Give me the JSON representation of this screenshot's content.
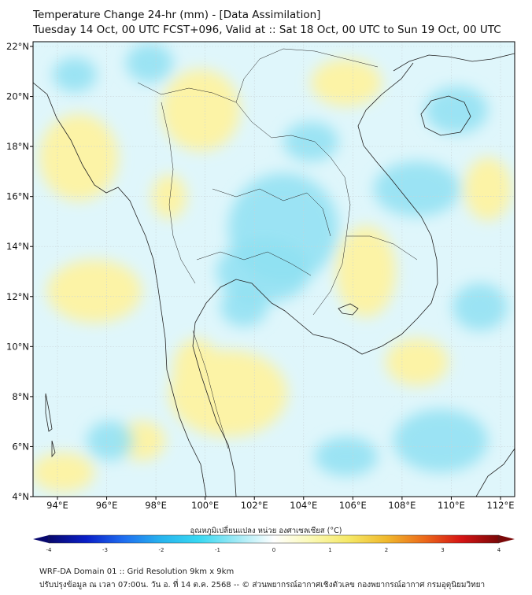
{
  "title": {
    "line1": "Temperature Change 24-hr (mm) - [Data Assimilation]",
    "line2": "Tuesday 14 Oct, 00 UTC FCST+096, Valid at :: Sat 18 Oct, 00 UTC to Sun 19 Oct, 00 UTC"
  },
  "map": {
    "lat_ticks": [
      "22°N",
      "20°N",
      "18°N",
      "16°N",
      "14°N",
      "12°N",
      "10°N",
      "8°N",
      "6°N",
      "4°N"
    ],
    "lon_ticks": [
      "94°E",
      "96°E",
      "98°E",
      "100°E",
      "102°E",
      "104°E",
      "106°E",
      "108°E",
      "110°E",
      "112°E"
    ],
    "background_color": "#dff6fb",
    "warm_color": "#fcf3a6",
    "cool_color": "#8fe0f2"
  },
  "colorbar": {
    "label": "อุณหภูมิเปลี่ยนแปลง หน่วย องศาเซลเซียส (°C)",
    "ticks": [
      "-4",
      "-3",
      "-2",
      "-1",
      "0",
      "1",
      "2",
      "3",
      "4"
    ],
    "min": -4,
    "max": 4,
    "colors": [
      "#08086e",
      "#0a1fc8",
      "#1f6ef0",
      "#27b4ee",
      "#38d8f2",
      "#9ee9f5",
      "#ffffff",
      "#fbf9b4",
      "#f5e866",
      "#f0b92d",
      "#ec6a1a",
      "#d51414",
      "#7a0808"
    ]
  },
  "footer": {
    "line1": "WRF-DA Domain 01 :: Grid Resolution 9km x 9km",
    "line2": "ปรับปรุงข้อมูล ณ เวลา 07:00น. วัน อ. ที่ 14 ต.ค. 2568 -- © ส่วนพยากรณ์อากาศเชิงตัวเลข กองพยากรณ์อากาศ กรมอุตุนิยมวิทยา"
  }
}
